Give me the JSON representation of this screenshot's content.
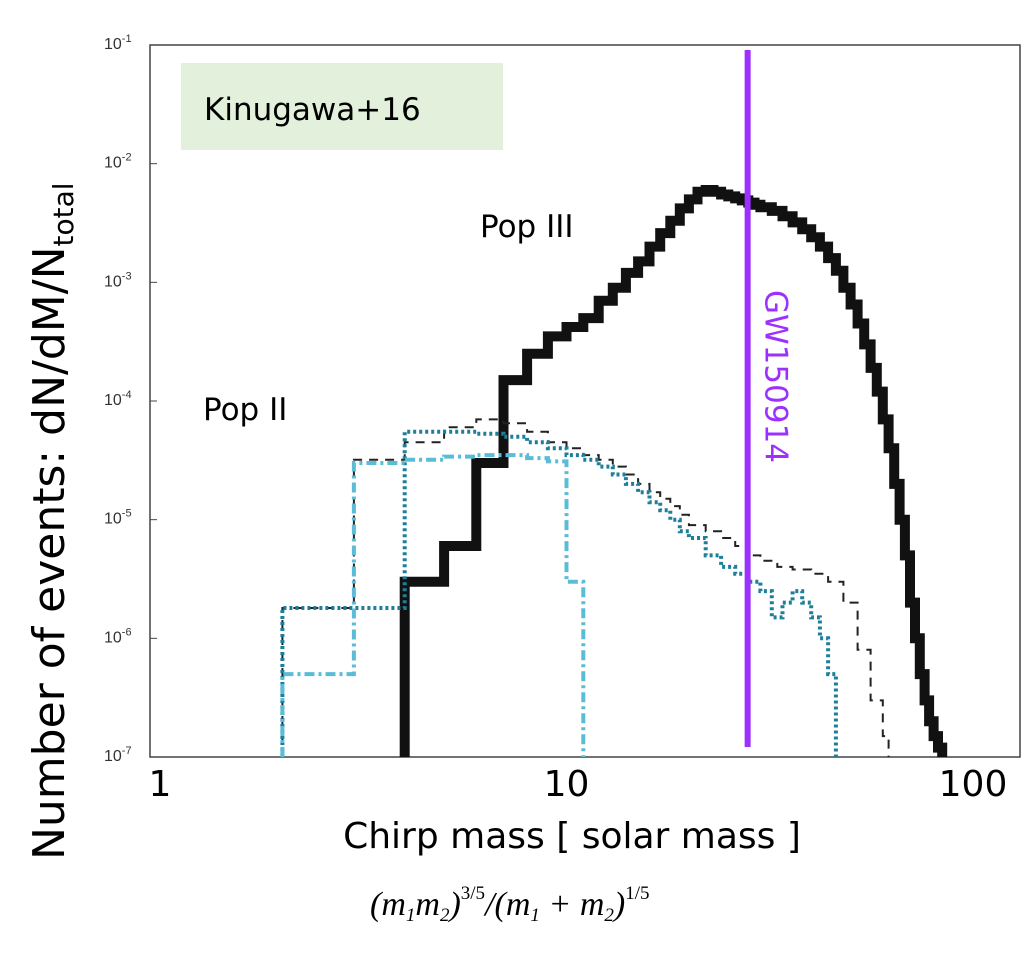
{
  "annotations": {
    "reference_box": "Kinugawa+16",
    "pop3_label": "Pop III",
    "pop2_label": "Pop II",
    "event_label": "GW150914"
  },
  "colors": {
    "pop3": "#111111",
    "pop2_dashed": "#222222",
    "pop2_dotted": "#1e7f9a",
    "pop2_dashdot": "#5bbcd8",
    "event": "#9b30ff",
    "reference_box_bg": "#e3f0dc"
  },
  "chart_data": {
    "type": "line",
    "xlabel": "Chirp mass [ solar mass ]",
    "x_formula": "(m1m2)^3/5/(m1+m2)^1/5",
    "ylabel": "Number of events: dN/dM/N",
    "ylabel_subscript": "total",
    "xscale": "log",
    "yscale": "log",
    "xlim": [
      1,
      115
    ],
    "ylim": [
      1e-07,
      0.1
    ],
    "x_tick_labels": [
      "1",
      "10",
      "100"
    ],
    "y_tick_labels": [
      "10-1",
      "10-2",
      "10-3",
      "10-4",
      "10-5",
      "10-6",
      "10-7"
    ],
    "vertical_line": {
      "name": "GW150914",
      "x": 27.9
    },
    "series": [
      {
        "name": "Pop III",
        "style": "solid-step",
        "x": [
          4,
          5,
          6,
          7,
          8,
          9,
          10,
          11,
          12,
          13,
          14,
          15,
          16,
          17,
          18,
          19,
          20,
          21,
          22,
          23,
          24,
          25,
          26,
          27,
          28,
          29,
          30,
          32,
          34,
          36,
          38,
          40,
          42,
          44,
          46,
          48,
          50,
          52,
          54,
          56,
          58,
          60,
          62,
          64,
          66,
          68,
          70,
          72,
          74,
          76,
          78,
          80,
          82,
          84
        ],
        "y": [
          3e-06,
          6e-06,
          3e-05,
          0.00015,
          0.00025,
          0.00035,
          0.00042,
          0.0005,
          0.0007,
          0.0009,
          0.0012,
          0.0015,
          0.002,
          0.0026,
          0.0033,
          0.0042,
          0.005,
          0.0058,
          0.006,
          0.0058,
          0.0055,
          0.0053,
          0.0051,
          0.0049,
          0.0047,
          0.0045,
          0.0043,
          0.004,
          0.0036,
          0.0032,
          0.0028,
          0.0024,
          0.002,
          0.0016,
          0.00125,
          0.0009,
          0.00065,
          0.00045,
          0.0003,
          0.00019,
          0.00012,
          7e-05,
          4e-05,
          2e-05,
          1e-05,
          5e-06,
          2e-06,
          1e-06,
          5e-07,
          3e-07,
          2e-07,
          1.5e-07,
          1.2e-07,
          1e-07
        ]
      },
      {
        "name": "Pop II (dashed)",
        "style": "dashed-step",
        "x": [
          2,
          3,
          4,
          5,
          6,
          7,
          8,
          9,
          10,
          11,
          12,
          13,
          14,
          15,
          16,
          17,
          18,
          19,
          20,
          22,
          24,
          26,
          28,
          30,
          33,
          36,
          40,
          44,
          48,
          52,
          56,
          60,
          62
        ],
        "y": [
          1.8e-06,
          3.2e-05,
          4.5e-05,
          6e-05,
          7e-05,
          6.5e-05,
          5.5e-05,
          4.5e-05,
          4e-05,
          3.5e-05,
          3.2e-05,
          2.8e-05,
          2.4e-05,
          2e-05,
          1.7e-05,
          1.5e-05,
          1.3e-05,
          1.1e-05,
          9e-06,
          8e-06,
          7e-06,
          6e-06,
          5e-06,
          4.5e-06,
          4e-06,
          3.8e-06,
          3.5e-06,
          3e-06,
          2e-06,
          8e-07,
          3e-07,
          1.5e-07,
          1e-07
        ]
      },
      {
        "name": "Pop II (dotted)",
        "style": "dotted-step",
        "x": [
          2,
          3,
          4,
          5,
          6,
          7,
          8,
          9,
          10,
          11,
          12,
          13,
          14,
          15,
          16,
          17,
          18,
          19,
          20,
          22,
          24,
          26,
          28,
          30,
          32,
          34,
          36,
          38,
          40,
          42,
          44,
          46
        ],
        "y": [
          1.8e-06,
          1.8e-06,
          5.5e-05,
          5.5e-05,
          5.3e-05,
          5e-05,
          4.5e-05,
          4e-05,
          3.5e-05,
          3.2e-05,
          2.8e-05,
          2.4e-05,
          2e-05,
          1.7e-05,
          1.4e-05,
          1.2e-05,
          1e-05,
          8e-06,
          7e-06,
          5e-06,
          4e-06,
          3.5e-06,
          3e-06,
          2.5e-06,
          1.5e-06,
          2e-06,
          2.5e-06,
          2e-06,
          1.5e-06,
          1e-06,
          5e-07,
          1e-07
        ]
      },
      {
        "name": "Pop II (dash-dot)",
        "style": "dashdot-step",
        "x": [
          2,
          3,
          4,
          5,
          6,
          7,
          8,
          9,
          10,
          11
        ],
        "y": [
          5e-07,
          3e-05,
          3.2e-05,
          3.4e-05,
          3.5e-05,
          3.5e-05,
          3.3e-05,
          3.1e-05,
          3e-06,
          1e-07
        ]
      }
    ]
  }
}
